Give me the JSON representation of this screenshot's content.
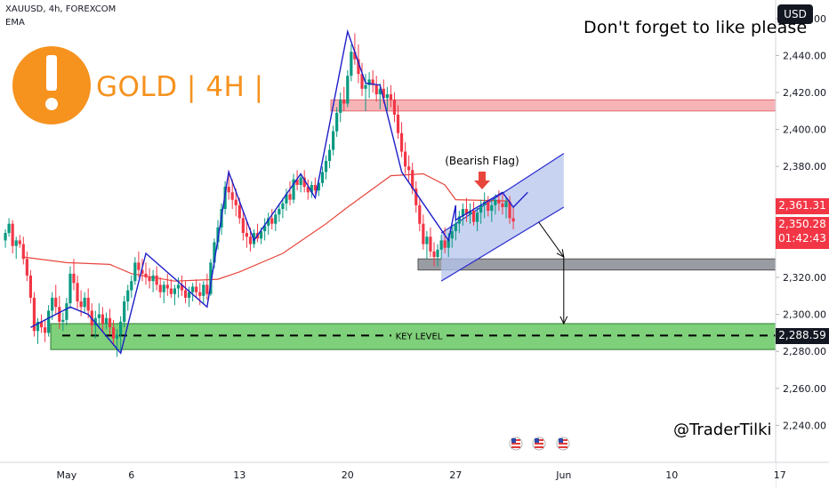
{
  "header": {
    "symbol": "XAUUSD, 4h, FOREXCOM",
    "indicator": "EMA"
  },
  "currency_button": "USD",
  "banner_text": "Don't forget to like please",
  "brand_title": "GOLD | 4H |",
  "brand_icon": "exclamation-icon",
  "watermark": "@TraderTilki",
  "colors": {
    "accent_orange": "#f6921e",
    "bull": "#089981",
    "bear": "#f23645",
    "ema": "#e8453c",
    "wave": "#1d1dc9",
    "resistance_zone": "#f7b4b7",
    "support_zone": "#7ed07a",
    "gray_zone": "#9a9ca3",
    "flag_fill": "#b4c4ec"
  },
  "price_tags": {
    "ema_price": "2,361.31",
    "last_price": "2,350.28",
    "countdown": "01:42:43",
    "key_level_price": "2,288.59"
  },
  "annotations": {
    "bearish_flag": "(Bearish Flag)",
    "key_level": "KEY LEVEL"
  },
  "event_icons": [
    "us-flag-icon",
    "us-flag-icon",
    "us-flag-icon"
  ],
  "chart_data": {
    "type": "candlestick",
    "y_axis_ticks": [
      "2,460.00",
      "2,440.00",
      "2,420.00",
      "2,400.00",
      "2,380.00",
      "2,360.00",
      "2,340.00",
      "2,320.00",
      "2,300.00",
      "2,280.00",
      "2,260.00",
      "2,240.00"
    ],
    "x_axis_ticks": [
      "May",
      "6",
      "13",
      "20",
      "27",
      "Jun",
      "10",
      "17"
    ],
    "ylim": [
      2220,
      2470
    ],
    "zones": {
      "resistance": [
        2410,
        2416
      ],
      "gray_support": [
        2324,
        2330
      ],
      "key_level": [
        2281,
        2295
      ],
      "key_level_line": 2288.59
    },
    "ema_path": [
      [
        "2024-04-29 00:00",
        2331
      ],
      [
        "2024-05-01 00:00",
        2328
      ],
      [
        "2024-05-03 00:00",
        2327
      ],
      [
        "2024-05-06 00:00",
        2322
      ],
      [
        "2024-05-08 00:00",
        2318
      ],
      [
        "2024-05-10 00:00",
        2319
      ],
      [
        "2024-05-13 00:00",
        2323
      ],
      [
        "2024-05-15 00:00",
        2333
      ],
      [
        "2024-05-17 00:00",
        2349
      ],
      [
        "2024-05-20 00:00",
        2358
      ],
      [
        "2024-05-22 00:00",
        2375
      ],
      [
        "2024-05-23 12:00",
        2376
      ],
      [
        "2024-05-24 12:00",
        2370
      ],
      [
        "2024-05-27 00:00",
        2362
      ],
      [
        "2024-05-29 12:00",
        2361.31
      ]
    ],
    "wave_path": [
      [
        "2024-04-29 08:00",
        2293
      ],
      [
        "2024-05-01 04:00",
        2304
      ],
      [
        "2024-05-02 00:00",
        2300
      ],
      [
        "2024-05-03 12:00",
        2279
      ],
      [
        "2024-05-06 16:00",
        2333
      ],
      [
        "2024-05-09 12:00",
        2304
      ],
      [
        "2024-05-10 12:00",
        2377
      ],
      [
        "2024-05-13 16:00",
        2340
      ],
      [
        "2024-05-15 20:00",
        2376
      ],
      [
        "2024-05-16 12:00",
        2363
      ],
      [
        "2024-05-19 12:00",
        2453
      ],
      [
        "2024-05-20 20:00",
        2425
      ],
      [
        "2024-05-21 12:00",
        2424
      ],
      [
        "2024-05-22 12:00",
        2377
      ],
      [
        "2024-05-24 16:00",
        2340
      ],
      [
        "2024-05-26 08:00",
        2359
      ],
      [
        "2024-05-26 20:00",
        2351
      ],
      [
        "2024-05-29 04:00",
        2366
      ],
      [
        "2024-05-29 16:00",
        2358
      ],
      [
        "2024-05-30 08:00",
        2366
      ]
    ],
    "flag_channel": {
      "upper": [
        [
          "2024-05-24 08:00",
          2344
        ],
        [
          "2024-06-02 04:00",
          2387
        ]
      ],
      "lower": [
        [
          "2024-05-24 08:00",
          2318
        ],
        [
          "2024-06-02 04:00",
          2358
        ]
      ]
    },
    "projection": [
      [
        "2024-05-30 20:00",
        2350
      ],
      [
        "2024-06-01 00:00",
        2331
      ],
      [
        "2024-06-02 08:00",
        2295
      ]
    ],
    "candles": [
      [
        "2024-04-26 04:00",
        2340,
        2346,
        2336,
        2344
      ],
      [
        "2024-04-26 08:00",
        2344,
        2352,
        2342,
        2349
      ],
      [
        "2024-04-26 12:00",
        2349,
        2351,
        2333,
        2337
      ],
      [
        "2024-04-26 16:00",
        2337,
        2342,
        2330,
        2340
      ],
      [
        "2024-04-26 20:00",
        2340,
        2343,
        2336,
        2338
      ],
      [
        "2024-04-29 00:00",
        2338,
        2342,
        2327,
        2330
      ],
      [
        "2024-04-29 04:00",
        2330,
        2334,
        2318,
        2321
      ],
      [
        "2024-04-29 08:00",
        2321,
        2324,
        2306,
        2309
      ],
      [
        "2024-04-29 12:00",
        2309,
        2312,
        2288,
        2291
      ],
      [
        "2024-04-29 16:00",
        2291,
        2298,
        2284,
        2296
      ],
      [
        "2024-04-29 20:00",
        2296,
        2300,
        2290,
        2293
      ],
      [
        "2024-04-30 00:00",
        2293,
        2297,
        2285,
        2290
      ],
      [
        "2024-04-30 04:00",
        2290,
        2305,
        2288,
        2302
      ],
      [
        "2024-04-30 08:00",
        2302,
        2312,
        2297,
        2309
      ],
      [
        "2024-04-30 12:00",
        2309,
        2316,
        2300,
        2304
      ],
      [
        "2024-04-30 16:00",
        2304,
        2310,
        2292,
        2296
      ],
      [
        "2024-04-30 20:00",
        2296,
        2301,
        2291,
        2297
      ],
      [
        "2024-05-01 00:00",
        2297,
        2309,
        2294,
        2306
      ],
      [
        "2024-05-01 04:00",
        2306,
        2326,
        2303,
        2322
      ],
      [
        "2024-05-01 08:00",
        2322,
        2330,
        2313,
        2317
      ],
      [
        "2024-05-01 12:00",
        2317,
        2321,
        2303,
        2307
      ],
      [
        "2024-05-01 16:00",
        2307,
        2313,
        2299,
        2304
      ],
      [
        "2024-05-01 20:00",
        2304,
        2312,
        2301,
        2309
      ],
      [
        "2024-05-02 00:00",
        2309,
        2314,
        2298,
        2302
      ],
      [
        "2024-05-02 04:00",
        2302,
        2306,
        2289,
        2294
      ],
      [
        "2024-05-02 08:00",
        2294,
        2302,
        2287,
        2298
      ],
      [
        "2024-05-02 12:00",
        2298,
        2306,
        2293,
        2300
      ],
      [
        "2024-05-02 16:00",
        2300,
        2304,
        2290,
        2295
      ],
      [
        "2024-05-02 20:00",
        2295,
        2301,
        2292,
        2298
      ],
      [
        "2024-05-03 00:00",
        2298,
        2303,
        2289,
        2293
      ],
      [
        "2024-05-03 04:00",
        2293,
        2297,
        2283,
        2287
      ],
      [
        "2024-05-03 08:00",
        2287,
        2292,
        2277,
        2289
      ],
      [
        "2024-05-03 12:00",
        2289,
        2299,
        2279,
        2296
      ],
      [
        "2024-05-03 16:00",
        2296,
        2310,
        2293,
        2307
      ],
      [
        "2024-05-03 20:00",
        2307,
        2316,
        2302,
        2313
      ],
      [
        "2024-05-06 00:00",
        2313,
        2321,
        2309,
        2318
      ],
      [
        "2024-05-06 04:00",
        2318,
        2331,
        2316,
        2328
      ],
      [
        "2024-05-06 08:00",
        2328,
        2334,
        2320,
        2324
      ],
      [
        "2024-05-06 12:00",
        2324,
        2330,
        2318,
        2322
      ],
      [
        "2024-05-06 16:00",
        2322,
        2328,
        2316,
        2320
      ],
      [
        "2024-05-06 20:00",
        2320,
        2325,
        2314,
        2318
      ],
      [
        "2024-05-07 00:00",
        2318,
        2324,
        2312,
        2321
      ],
      [
        "2024-05-07 04:00",
        2321,
        2326,
        2313,
        2316
      ],
      [
        "2024-05-07 08:00",
        2316,
        2320,
        2309,
        2312
      ],
      [
        "2024-05-07 12:00",
        2312,
        2318,
        2306,
        2316
      ],
      [
        "2024-05-07 16:00",
        2316,
        2322,
        2310,
        2314
      ],
      [
        "2024-05-07 20:00",
        2314,
        2319,
        2309,
        2311
      ],
      [
        "2024-05-08 00:00",
        2311,
        2316,
        2305,
        2314
      ],
      [
        "2024-05-08 04:00",
        2314,
        2320,
        2309,
        2316
      ],
      [
        "2024-05-08 08:00",
        2316,
        2321,
        2310,
        2313
      ],
      [
        "2024-05-08 12:00",
        2313,
        2318,
        2306,
        2309
      ],
      [
        "2024-05-08 16:00",
        2309,
        2315,
        2304,
        2312
      ],
      [
        "2024-05-08 20:00",
        2312,
        2317,
        2307,
        2315
      ],
      [
        "2024-05-09 00:00",
        2315,
        2319,
        2309,
        2312
      ],
      [
        "2024-05-09 04:00",
        2312,
        2317,
        2305,
        2310
      ],
      [
        "2024-05-09 08:00",
        2310,
        2318,
        2306,
        2316
      ],
      [
        "2024-05-09 12:00",
        2316,
        2322,
        2308,
        2311
      ],
      [
        "2024-05-09 16:00",
        2311,
        2330,
        2310,
        2328
      ],
      [
        "2024-05-09 20:00",
        2328,
        2341,
        2325,
        2339
      ],
      [
        "2024-05-10 00:00",
        2339,
        2351,
        2335,
        2347
      ],
      [
        "2024-05-10 04:00",
        2347,
        2360,
        2343,
        2357
      ],
      [
        "2024-05-10 08:00",
        2357,
        2372,
        2354,
        2369
      ],
      [
        "2024-05-10 12:00",
        2369,
        2378,
        2362,
        2366
      ],
      [
        "2024-05-10 16:00",
        2366,
        2373,
        2357,
        2362
      ],
      [
        "2024-05-10 20:00",
        2362,
        2368,
        2353,
        2359
      ],
      [
        "2024-05-13 00:00",
        2359,
        2363,
        2349,
        2352
      ],
      [
        "2024-05-13 04:00",
        2352,
        2356,
        2340,
        2344
      ],
      [
        "2024-05-13 08:00",
        2344,
        2350,
        2336,
        2342
      ],
      [
        "2024-05-13 12:00",
        2342,
        2347,
        2334,
        2338
      ],
      [
        "2024-05-13 16:00",
        2338,
        2346,
        2336,
        2344
      ],
      [
        "2024-05-13 20:00",
        2344,
        2349,
        2339,
        2341
      ],
      [
        "2024-05-14 00:00",
        2341,
        2347,
        2338,
        2345
      ],
      [
        "2024-05-14 04:00",
        2345,
        2352,
        2340,
        2348
      ],
      [
        "2024-05-14 08:00",
        2348,
        2355,
        2343,
        2352
      ],
      [
        "2024-05-14 12:00",
        2352,
        2357,
        2346,
        2349
      ],
      [
        "2024-05-14 16:00",
        2349,
        2356,
        2345,
        2354
      ],
      [
        "2024-05-14 20:00",
        2354,
        2360,
        2350,
        2357
      ],
      [
        "2024-05-15 00:00",
        2357,
        2363,
        2352,
        2360
      ],
      [
        "2024-05-15 04:00",
        2360,
        2368,
        2356,
        2365
      ],
      [
        "2024-05-15 08:00",
        2365,
        2372,
        2359,
        2362
      ],
      [
        "2024-05-15 12:00",
        2362,
        2376,
        2360,
        2373
      ],
      [
        "2024-05-15 16:00",
        2373,
        2378,
        2367,
        2370
      ],
      [
        "2024-05-15 20:00",
        2370,
        2376,
        2366,
        2374
      ],
      [
        "2024-05-16 00:00",
        2374,
        2378,
        2366,
        2369
      ],
      [
        "2024-05-16 04:00",
        2369,
        2373,
        2362,
        2366
      ],
      [
        "2024-05-16 08:00",
        2366,
        2372,
        2363,
        2370
      ],
      [
        "2024-05-16 12:00",
        2370,
        2374,
        2365,
        2367
      ],
      [
        "2024-05-16 16:00",
        2367,
        2374,
        2364,
        2371
      ],
      [
        "2024-05-16 20:00",
        2371,
        2380,
        2369,
        2377
      ],
      [
        "2024-05-17 00:00",
        2377,
        2386,
        2373,
        2383
      ],
      [
        "2024-05-17 04:00",
        2383,
        2392,
        2379,
        2389
      ],
      [
        "2024-05-17 08:00",
        2389,
        2402,
        2386,
        2399
      ],
      [
        "2024-05-17 12:00",
        2399,
        2412,
        2396,
        2409
      ],
      [
        "2024-05-17 16:00",
        2409,
        2420,
        2404,
        2416
      ],
      [
        "2024-05-17 20:00",
        2416,
        2423,
        2410,
        2414
      ],
      [
        "2024-05-20 00:00",
        2414,
        2432,
        2412,
        2429
      ],
      [
        "2024-05-20 04:00",
        2429,
        2446,
        2426,
        2442
      ],
      [
        "2024-05-20 08:00",
        2442,
        2452,
        2435,
        2438
      ],
      [
        "2024-05-20 12:00",
        2438,
        2446,
        2425,
        2430
      ],
      [
        "2024-05-20 16:00",
        2430,
        2436,
        2418,
        2422
      ],
      [
        "2024-05-20 20:00",
        2422,
        2430,
        2410,
        2424
      ],
      [
        "2024-05-21 00:00",
        2424,
        2431,
        2417,
        2427
      ],
      [
        "2024-05-21 04:00",
        2427,
        2432,
        2420,
        2424
      ],
      [
        "2024-05-21 08:00",
        2424,
        2429,
        2415,
        2419
      ],
      [
        "2024-05-21 12:00",
        2419,
        2425,
        2411,
        2422
      ],
      [
        "2024-05-21 16:00",
        2422,
        2427,
        2414,
        2417
      ],
      [
        "2024-05-21 20:00",
        2417,
        2423,
        2410,
        2419
      ],
      [
        "2024-05-22 00:00",
        2419,
        2424,
        2412,
        2416
      ],
      [
        "2024-05-22 04:00",
        2416,
        2420,
        2404,
        2408
      ],
      [
        "2024-05-22 08:00",
        2408,
        2413,
        2395,
        2398
      ],
      [
        "2024-05-22 12:00",
        2398,
        2404,
        2385,
        2388
      ],
      [
        "2024-05-22 16:00",
        2388,
        2393,
        2376,
        2380
      ],
      [
        "2024-05-22 20:00",
        2380,
        2386,
        2372,
        2378
      ],
      [
        "2024-05-23 00:00",
        2378,
        2382,
        2365,
        2368
      ],
      [
        "2024-05-23 04:00",
        2368,
        2372,
        2355,
        2359
      ],
      [
        "2024-05-23 08:00",
        2359,
        2363,
        2345,
        2349
      ],
      [
        "2024-05-23 12:00",
        2349,
        2354,
        2335,
        2338
      ],
      [
        "2024-05-23 16:00",
        2338,
        2345,
        2330,
        2342
      ],
      [
        "2024-05-23 20:00",
        2342,
        2347,
        2331,
        2334
      ],
      [
        "2024-05-24 00:00",
        2334,
        2339,
        2326,
        2331
      ],
      [
        "2024-05-24 04:00",
        2331,
        2338,
        2326,
        2335
      ],
      [
        "2024-05-24 08:00",
        2335,
        2343,
        2330,
        2340
      ],
      [
        "2024-05-24 12:00",
        2340,
        2347,
        2333,
        2336
      ],
      [
        "2024-05-24 16:00",
        2336,
        2344,
        2331,
        2341
      ],
      [
        "2024-05-24 20:00",
        2341,
        2348,
        2336,
        2345
      ],
      [
        "2024-05-27 00:00",
        2345,
        2352,
        2340,
        2349
      ],
      [
        "2024-05-27 04:00",
        2349,
        2356,
        2344,
        2353
      ],
      [
        "2024-05-27 08:00",
        2353,
        2360,
        2348,
        2357
      ],
      [
        "2024-05-27 12:00",
        2357,
        2363,
        2350,
        2354
      ],
      [
        "2024-05-27 16:00",
        2354,
        2360,
        2349,
        2356
      ],
      [
        "2024-05-27 20:00",
        2356,
        2361,
        2348,
        2350
      ],
      [
        "2024-05-28 00:00",
        2350,
        2358,
        2345,
        2355
      ],
      [
        "2024-05-28 04:00",
        2355,
        2362,
        2349,
        2359
      ],
      [
        "2024-05-28 08:00",
        2359,
        2366,
        2352,
        2361
      ],
      [
        "2024-05-28 12:00",
        2361,
        2364,
        2353,
        2356
      ],
      [
        "2024-05-28 16:00",
        2356,
        2362,
        2350,
        2359
      ],
      [
        "2024-05-28 20:00",
        2359,
        2365,
        2354,
        2362
      ],
      [
        "2024-05-29 00:00",
        2362,
        2367,
        2356,
        2360
      ],
      [
        "2024-05-29 04:00",
        2360,
        2365,
        2354,
        2358
      ],
      [
        "2024-05-29 08:00",
        2358,
        2363,
        2352,
        2361
      ],
      [
        "2024-05-29 12:00",
        2361,
        2364,
        2349,
        2352
      ],
      [
        "2024-05-29 16:00",
        2352,
        2358,
        2346,
        2350.28
      ]
    ]
  }
}
